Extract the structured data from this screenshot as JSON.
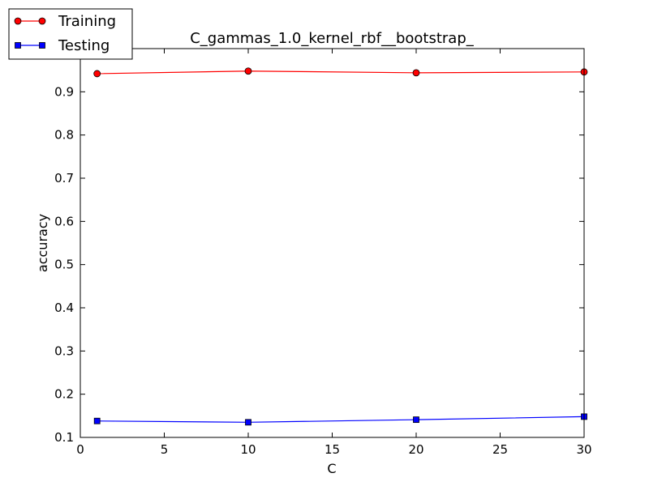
{
  "chart_data": {
    "type": "line",
    "title": "C_gammas_1.0_kernel_rbf__bootstrap_",
    "xlabel": "C",
    "ylabel": "accuracy",
    "xlim": [
      0,
      30
    ],
    "ylim": [
      0.1,
      1.0
    ],
    "x_ticks": [
      "0",
      "5",
      "10",
      "15",
      "20",
      "25",
      "30"
    ],
    "y_ticks": [
      "0.1",
      "0.2",
      "0.3",
      "0.4",
      "0.5",
      "0.6",
      "0.7",
      "0.8",
      "0.9"
    ],
    "grid": false,
    "legend_position": "top-left, outside axes",
    "x": [
      1,
      10,
      20,
      30
    ],
    "series": [
      {
        "name": "Training",
        "values": [
          0.942,
          0.948,
          0.944,
          0.946
        ],
        "color": "#ff0000",
        "marker": "circle"
      },
      {
        "name": "Testing",
        "values": [
          0.138,
          0.135,
          0.141,
          0.148
        ],
        "color": "#0000ff",
        "marker": "square"
      }
    ]
  }
}
